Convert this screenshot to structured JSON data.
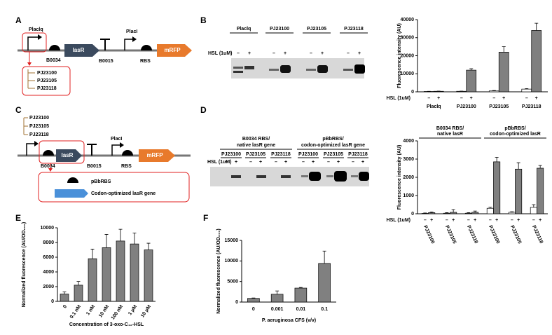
{
  "figure": {
    "panel_labels": [
      "A",
      "B",
      "C",
      "D",
      "E",
      "F"
    ],
    "construct_a": {
      "promoter": "Placlq",
      "rbs": "B0034",
      "gene": "lasR",
      "terminator": "B0015",
      "promoter2": "PlacI",
      "rbs2": "RBS",
      "reporter": "mRFP",
      "variants": [
        "PJ23100",
        "PJ23105",
        "PJ23118"
      ]
    },
    "gel_b": {
      "lanes": [
        "Placlq",
        "PJ23100",
        "PJ23105",
        "PJ23118"
      ],
      "condition": "HSL (1uM)",
      "states": [
        "–",
        "+"
      ]
    },
    "construct_c": {
      "variants": [
        "PJ23100",
        "PJ23105",
        "PJ23118"
      ],
      "rbs": "B0034",
      "gene": "lasR",
      "terminator": "B0015",
      "promoter2": "PlacI",
      "rbs2": "RBS",
      "reporter": "mRFP",
      "inset": [
        "pBbRBS",
        "Codon-optimized lasR gene"
      ]
    },
    "gel_d": {
      "groups": [
        {
          "label": [
            "B0034 RBS/",
            "native lasR gene"
          ],
          "lanes": [
            "PJ23100",
            "PJ23105",
            "PJ23118"
          ]
        },
        {
          "label": [
            "pBbRBS/",
            "codon-optimized lasR gene"
          ],
          "lanes": [
            "PJ23100",
            "PJ23105",
            "PJ23118"
          ]
        }
      ],
      "condition": "HSL (1uM)",
      "states": [
        "–",
        "+"
      ]
    }
  },
  "chart_data": [
    {
      "type": "bar",
      "y_label": "Fluorescence intensity (AU)",
      "condition_label": "HSL (1uM)",
      "categories": [
        "Placlq",
        "PJ23100",
        "PJ23105",
        "PJ23118"
      ],
      "series": [
        {
          "name": "–",
          "color": "#ffffff",
          "values": [
            200,
            300,
            500,
            1500
          ],
          "errors": [
            100,
            100,
            200,
            300
          ]
        },
        {
          "name": "+",
          "color": "#808080",
          "values": [
            300,
            12000,
            22000,
            34000
          ],
          "errors": [
            100,
            800,
            3000,
            4000
          ]
        }
      ],
      "ylim": [
        0,
        40000
      ],
      "yticks": [
        0,
        10000,
        20000,
        30000,
        40000
      ]
    },
    {
      "type": "bar",
      "y_label": "Fluorescence intensity (AU)",
      "condition_label": "HSL (1uM)",
      "groups": [
        {
          "label": [
            "B0034 RBS/",
            "native lasR"
          ],
          "categories": [
            "PJ23100",
            "PJ23105",
            "PJ23118"
          ]
        },
        {
          "label": [
            "pBbRBS/",
            "codon-optimized lasR"
          ],
          "categories": [
            "PJ23100",
            "PJ23105",
            "PJ23118"
          ]
        }
      ],
      "series": [
        {
          "name": "–",
          "color": "#ffffff",
          "values": [
            20,
            30,
            30,
            300,
            80,
            350
          ],
          "errors": [
            20,
            30,
            30,
            60,
            30,
            150
          ]
        },
        {
          "name": "+",
          "color": "#808080",
          "values": [
            60,
            80,
            80,
            2850,
            2450,
            2500
          ],
          "errors": [
            40,
            150,
            70,
            250,
            350,
            150
          ]
        }
      ],
      "ylim": [
        0,
        4000
      ],
      "yticks": [
        0,
        1000,
        2000,
        3000,
        4000
      ]
    },
    {
      "type": "bar",
      "y_label": "Normalized fluorescence (AU/OD₆₀₀)",
      "x_label": "Concentration of 3-oxo-C₁₂-HSL",
      "categories": [
        "0",
        "0.1 nM",
        "1 nM",
        "10 nM",
        "100 nM",
        "1 μM",
        "10 μM"
      ],
      "values": [
        1000,
        2200,
        5800,
        7300,
        8200,
        7800,
        7000
      ],
      "errors": [
        300,
        500,
        1300,
        1800,
        1600,
        1500,
        900
      ],
      "color": "#808080",
      "ylim": [
        0,
        10000
      ],
      "yticks": [
        0,
        2000,
        4000,
        6000,
        8000,
        10000
      ]
    },
    {
      "type": "bar",
      "y_label": "Normalized fluorescence (AU/OD₆₀₀)",
      "x_label": "P. aeruginosa CFS (v/v)",
      "categories": [
        "0",
        "0.001",
        "0.01",
        "0.1"
      ],
      "values": [
        900,
        1900,
        3400,
        9400
      ],
      "errors": [
        100,
        800,
        150,
        3000
      ],
      "color": "#808080",
      "ylim": [
        0,
        15000
      ],
      "yticks": [
        0,
        5000,
        10000,
        15000
      ]
    }
  ]
}
